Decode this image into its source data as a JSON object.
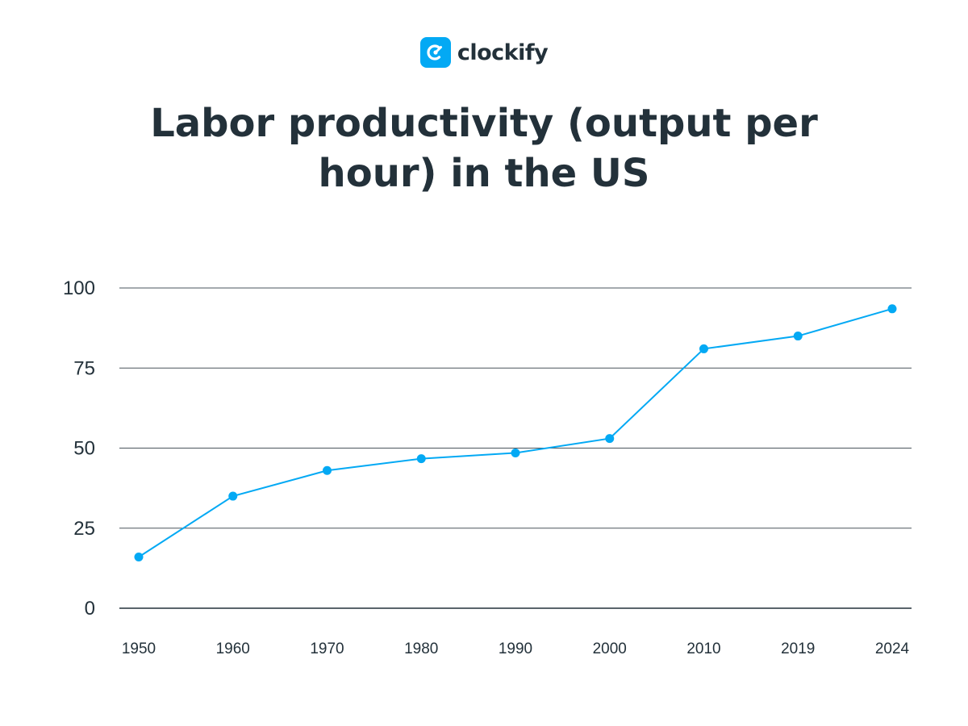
{
  "brand": {
    "name": "clockify",
    "logo_icon": "clockify-logo-icon",
    "color": "#03a9f4"
  },
  "title_lines": [
    "Labor productivity (output per",
    "hour) in the US"
  ],
  "chart_data": {
    "type": "line",
    "title": "Labor productivity (output per hour) in the US",
    "categories": [
      "1950",
      "1960",
      "1970",
      "1980",
      "1990",
      "2000",
      "2010",
      "2019",
      "2024"
    ],
    "series": [
      {
        "values": [
          16,
          35,
          43,
          46.7,
          48.5,
          53,
          81,
          85,
          93.5
        ],
        "color": "#03a9f4"
      }
    ],
    "ylim": [
      0,
      100
    ],
    "yticks": [
      0,
      25,
      50,
      75,
      100
    ],
    "grid": true,
    "xlabel": "",
    "ylabel": ""
  }
}
